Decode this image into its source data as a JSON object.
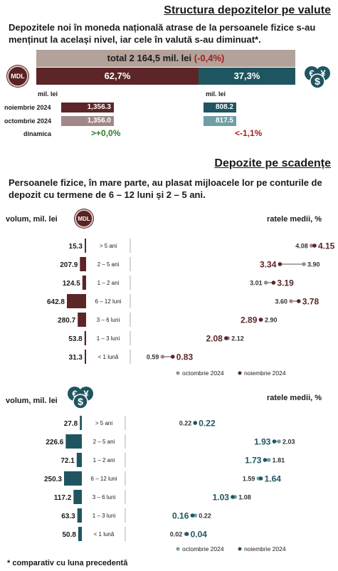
{
  "colors": {
    "mdl": "#5c2528",
    "fx": "#1f5560",
    "total_bar": "#b3a29a",
    "oct_mdl": "#a08888",
    "oct_fx": "#6f9ea6",
    "arrow": "#1a1a1a",
    "up": "#2b7a2b",
    "down": "#a11f1f"
  },
  "section1": {
    "title": "Structura depozitelor pe valute",
    "intro": "Depozitele noi în moneda națională atrase de la persoanele fizice s-au menținut la același nivel, iar cele în valută s-au diminuat*.",
    "total_label": "total 2 164,5 mil. lei",
    "total_change": "(-0,4%)",
    "mdl_share": "62,7%",
    "fx_share": "37,3%",
    "mdl_badge": "MDL",
    "unit_left": "mil. lei",
    "unit_right": "mil. lei",
    "rows": [
      {
        "label": "noiembrie 2024",
        "mdl": "1,356.3",
        "fx": "808.2"
      },
      {
        "label": "octombrie 2024",
        "mdl": "1,356.0",
        "fx": "817.5"
      }
    ],
    "dynamics_label": "dinamica",
    "mdl_dynamics": ">+0,0%",
    "fx_dynamics": "<-1,1%"
  },
  "section2": {
    "title": "Depozite pe scadențe",
    "intro": "Persoanele fizice, în mare parte, au plasat mijloacele lor pe conturile de depozit cu termene de 6 – 12 luni și 2 – 5 ani."
  },
  "footnote": "* comparativ cu luna precedentă",
  "icons": {
    "mdl_logo": "mdl-coin-icon",
    "fx_logo": "euro-dollar-yen-coins-icon"
  },
  "chart_data": [
    {
      "type": "bar",
      "title": "",
      "left_label": "volum, mil. lei",
      "right_label": "ratele medii, %",
      "currency": "MDL",
      "categories": [
        "> 5 ani",
        "2 – 5 ani",
        "1 – 2 ani",
        "6 – 12 luni",
        "3 – 6 luni",
        "1 – 3 luni",
        "< 1 lună"
      ],
      "volume": [
        15.3,
        207.9,
        124.5,
        642.8,
        280.7,
        53.8,
        31.3
      ],
      "rate_oct": [
        4.08,
        3.9,
        3.01,
        3.6,
        2.9,
        2.12,
        0.59
      ],
      "rate_nov": [
        4.15,
        3.34,
        3.19,
        3.78,
        2.89,
        2.08,
        0.83
      ],
      "legend": [
        "octombrie 2024",
        "noiembrie 2024"
      ]
    },
    {
      "type": "bar",
      "title": "",
      "left_label": "volum, mil. lei",
      "right_label": "ratele medii, %",
      "currency": "FX",
      "categories": [
        "> 5 ani",
        "2 – 5 ani",
        "1 – 2 ani",
        "6 – 12 luni",
        "3 – 6 luni",
        "1 – 3 luni",
        "< 1 lună"
      ],
      "volume": [
        27.8,
        226.6,
        72.1,
        250.3,
        117.2,
        63.3,
        50.8
      ],
      "rate_oct": [
        0.22,
        2.03,
        1.81,
        1.59,
        1.08,
        0.22,
        0.02
      ],
      "rate_nov": [
        0.22,
        1.93,
        1.73,
        1.64,
        1.03,
        0.16,
        0.04
      ],
      "legend": [
        "octombrie 2024",
        "noiembrie 2024"
      ]
    }
  ]
}
